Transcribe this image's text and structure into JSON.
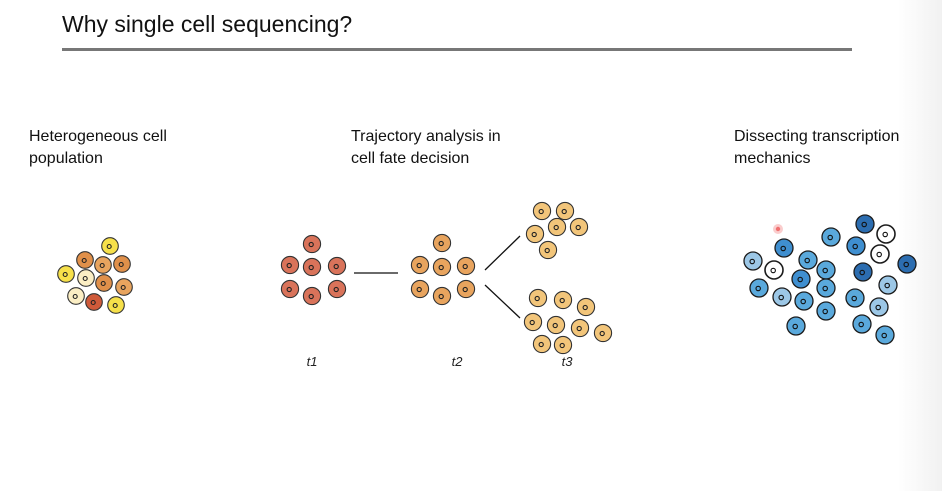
{
  "slide": {
    "title": "Why single cell sequencing?"
  },
  "panels": {
    "heterogeneous": {
      "heading_line1": "Heterogeneous cell",
      "heading_line2": "population"
    },
    "trajectory": {
      "heading_line1": "Trajectory analysis in",
      "heading_line2": "cell fate decision",
      "time_labels": [
        "t1",
        "t2",
        "t3"
      ]
    },
    "transcription": {
      "heading_line1": "Dissecting transcription",
      "heading_line2": "mechanics"
    }
  },
  "colors": {
    "t1_cell": "#d9735a",
    "t2_cell": "#e8a45e",
    "t3_cell": "#f2c57a",
    "pale_yellow": "#fbeec4",
    "yellow": "#f6e04a",
    "dark_orange": "#e0904a",
    "red_orange": "#cf5a3a",
    "light_blue": "#5aa9dc",
    "mid_blue": "#3f8fd0",
    "dark_blue": "#2c6db0",
    "pale_blue": "#9cc7e6",
    "empty_cell": "#ffffff",
    "cursor_dot": "#f07070"
  }
}
